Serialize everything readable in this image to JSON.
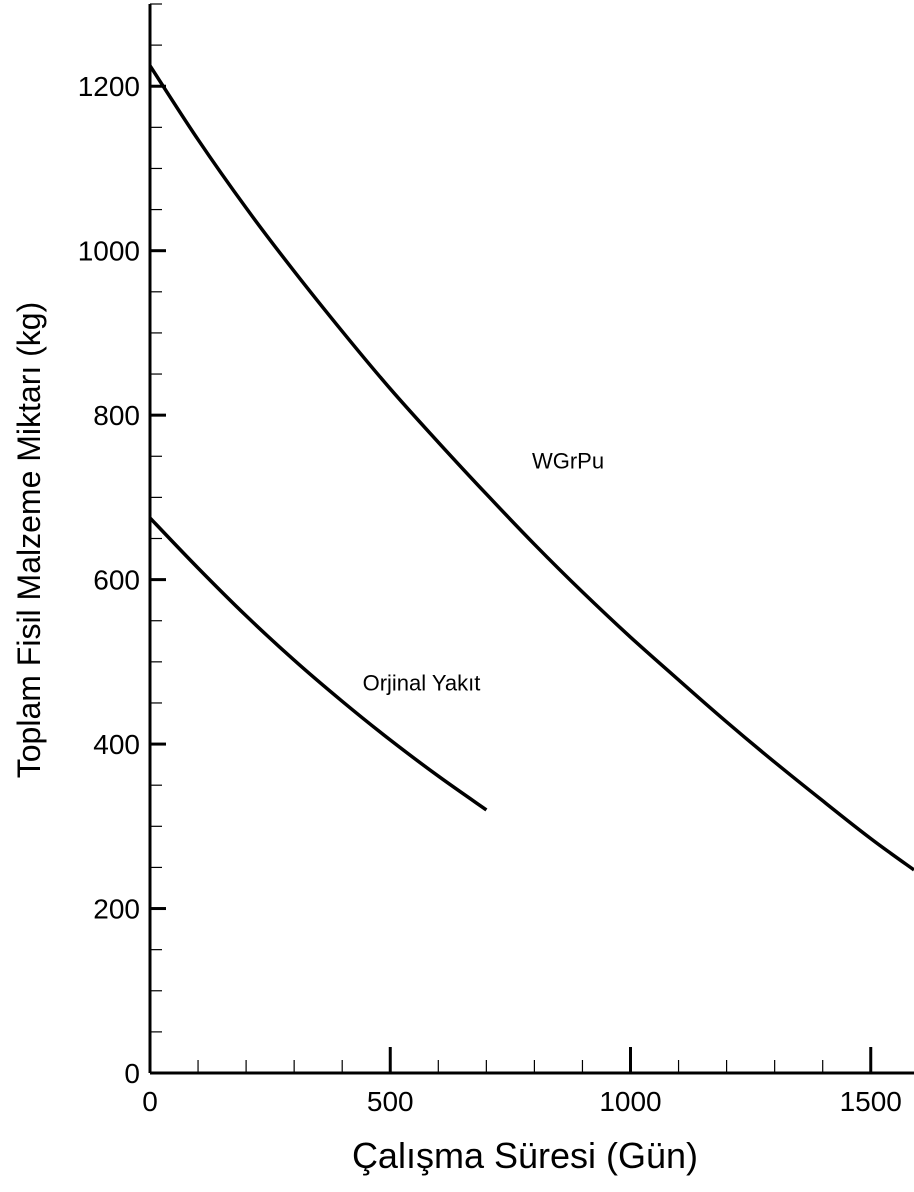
{
  "chart_data": {
    "type": "line",
    "title": "",
    "xlabel": "Çalışma Süresi (Gün)",
    "ylabel": "Toplam Fisil Malzeme Miktarı (kg)",
    "xlim": [
      0,
      1590
    ],
    "ylim": [
      0,
      1300
    ],
    "x_ticks": [
      0,
      500,
      1000,
      1500
    ],
    "x_tick_labels": [
      "0",
      "500",
      "1000",
      "1500"
    ],
    "y_ticks": [
      0,
      200,
      400,
      600,
      800,
      1000,
      1200
    ],
    "y_tick_labels": [
      "0",
      "200",
      "400",
      "600",
      "800",
      "1000",
      "1200"
    ],
    "grid": false,
    "legend": "none",
    "series": [
      {
        "name": "WGrPu",
        "x": [
          0,
          100,
          200,
          300,
          400,
          500,
          600,
          700,
          800,
          900,
          1000,
          1100,
          1200,
          1300,
          1400,
          1500,
          1590
        ],
        "y": [
          1225,
          1135,
          1052,
          975,
          902,
          832,
          767,
          704,
          643,
          585,
          530,
          478,
          427,
          378,
          331,
          285,
          247
        ],
        "label_x": 870,
        "label_y": 735
      },
      {
        "name": "Orjinal Yakıt",
        "x": [
          0,
          100,
          200,
          300,
          400,
          500,
          600,
          700
        ],
        "y": [
          675,
          614,
          556,
          502,
          452,
          405,
          361,
          320
        ],
        "label_x": 565,
        "label_y": 465
      }
    ]
  }
}
